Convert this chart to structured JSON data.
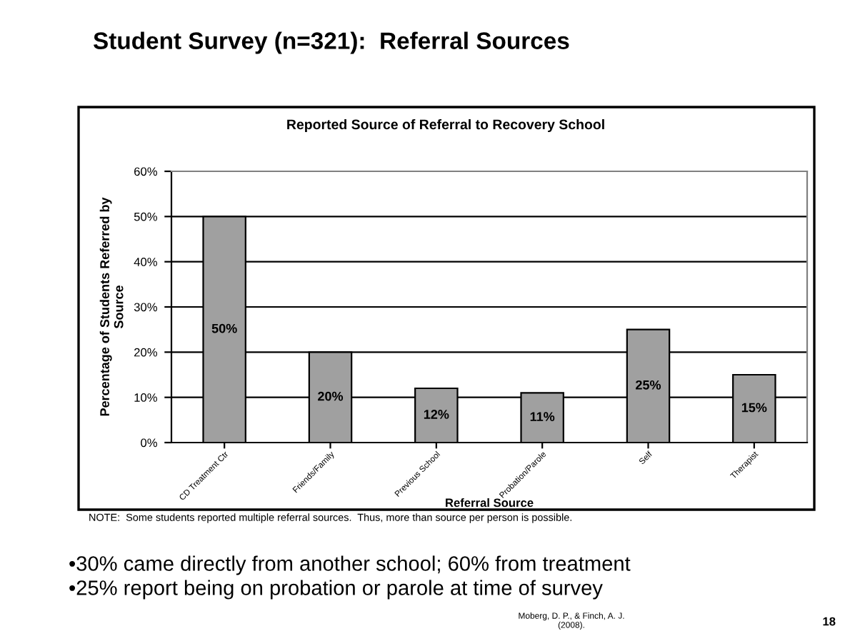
{
  "chart_data": {
    "type": "bar",
    "title": "Student Survey (n=321):  Referral Sources",
    "subtitle": "Reported Source of Referral to Recovery School",
    "xlabel": "Referral Source",
    "ylabel": "Percentage of Students Referred by\nSource",
    "categories": [
      "CD Treatment Ctr",
      "Friends/Family",
      "Previous School",
      "Probation/Parole",
      "Self",
      "Therapist"
    ],
    "values": [
      50,
      20,
      12,
      11,
      25,
      15
    ],
    "color": "#a0a0a0",
    "value_labels": [
      "50%",
      "20%",
      "12%",
      "11%",
      "25%",
      "15%"
    ],
    "ylim": [
      0,
      60
    ],
    "yticks": [
      {
        "value": 0,
        "label": "0%"
      },
      {
        "value": 10,
        "label": "10%"
      },
      {
        "value": 20,
        "label": "20%"
      },
      {
        "value": 30,
        "label": "30%"
      },
      {
        "value": 40,
        "label": "40%"
      },
      {
        "value": 50,
        "label": "50%"
      },
      {
        "value": 60,
        "label": "60%"
      }
    ],
    "grid": "y",
    "legend": false,
    "annotations": [
      "NOTE:  Some students reported multiple referral sources.  Thus, more than source per person is possible.",
      "•30% came directly from another school; 60% from treatment",
      "•25% report being on probation or parole at time of survey",
      "Moberg, D. P., & Finch, A. J.\n(2008).",
      "18"
    ]
  }
}
